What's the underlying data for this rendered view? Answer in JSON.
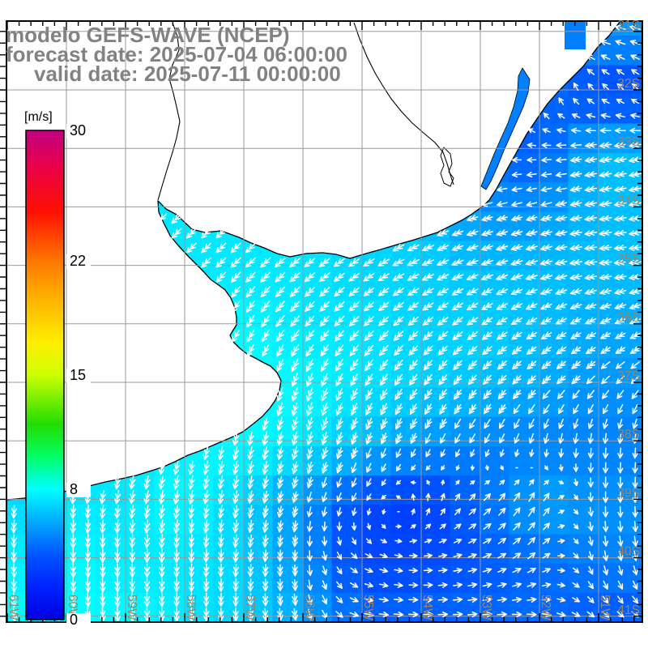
{
  "header": {
    "line1": "modelo GEFS-WAVE (NCEP)",
    "line2": "forecast date: 2025-07-04 06:00:00",
    "line3": "valid date: 2025-07-11 00:00:00",
    "text_color": "#828282"
  },
  "colorbar": {
    "unit_label": "[m/s]",
    "min": 0,
    "max": 30,
    "tick_labels": [
      "30",
      "22",
      "15",
      "8",
      "0"
    ],
    "tick_values": [
      30,
      22,
      15,
      8,
      0
    ],
    "stops": [
      [
        0,
        "#0000e0"
      ],
      [
        2,
        "#0022ff"
      ],
      [
        4,
        "#0055ff"
      ],
      [
        6,
        "#00aaff"
      ],
      [
        8,
        "#00ffff"
      ],
      [
        10,
        "#00ff66"
      ],
      [
        12,
        "#22dd00"
      ],
      [
        15,
        "#ccff00"
      ],
      [
        17,
        "#ffee00"
      ],
      [
        20,
        "#ffaa00"
      ],
      [
        22,
        "#ff7700"
      ],
      [
        25,
        "#ff1100"
      ],
      [
        28,
        "#e6004d"
      ],
      [
        30,
        "#c00080"
      ]
    ]
  },
  "axes": {
    "lat_labels": [
      "31S",
      "32S",
      "33S",
      "34S",
      "35S",
      "36S",
      "37S",
      "38S",
      "39S",
      "40S",
      "41S"
    ],
    "lon_labels": [
      "61W",
      "60W",
      "59W",
      "58W",
      "57W",
      "56W",
      "55W",
      "54W",
      "53W",
      "52W",
      "51W"
    ],
    "label_color": "#9c8468",
    "grid_color": "#999999"
  },
  "chart_data": {
    "type": "heatmap",
    "subtype": "wind_speed_and_direction_vector_field",
    "units": "m/s",
    "colorbar_range": [
      0,
      30
    ],
    "lat_degS": [
      31,
      32,
      33,
      34,
      35,
      36,
      37,
      38,
      39,
      40,
      41
    ],
    "lon_degW": [
      61,
      60,
      59,
      58,
      57,
      56,
      55,
      54,
      53,
      52,
      51
    ],
    "land_is_null": true,
    "speed_ms": [
      [
        null,
        null,
        null,
        null,
        null,
        null,
        null,
        null,
        null,
        null,
        5.5
      ],
      [
        null,
        null,
        null,
        null,
        null,
        null,
        null,
        null,
        null,
        4.5,
        3.5
      ],
      [
        null,
        null,
        null,
        null,
        null,
        null,
        null,
        null,
        null,
        4,
        6.5
      ],
      [
        null,
        null,
        null,
        null,
        null,
        null,
        null,
        null,
        5.5,
        5.5,
        6.5
      ],
      [
        null,
        null,
        null,
        null,
        7.5,
        7.5,
        7,
        7,
        6.5,
        6.5,
        6.5
      ],
      [
        null,
        null,
        null,
        null,
        8,
        7.5,
        7.5,
        7,
        7,
        6.5,
        6
      ],
      [
        null,
        null,
        null,
        null,
        null,
        8,
        7.5,
        7,
        6.5,
        6,
        5.5
      ],
      [
        null,
        null,
        null,
        null,
        8,
        7.5,
        6.5,
        5.5,
        5,
        5,
        5
      ],
      [
        7,
        7.5,
        7.5,
        8,
        7,
        5.5,
        3.5,
        3,
        4.5,
        6,
        5.5
      ],
      [
        7.5,
        8,
        7.5,
        7.5,
        7,
        5.5,
        3.5,
        3.5,
        4,
        4.5,
        5
      ],
      [
        8,
        8,
        8,
        7.5,
        7,
        6,
        4.5,
        4.5,
        4.5,
        4.5,
        4
      ]
    ],
    "dir_to_deg": [
      [
        null,
        null,
        null,
        null,
        null,
        null,
        null,
        null,
        null,
        null,
        285
      ],
      [
        null,
        null,
        null,
        null,
        null,
        null,
        null,
        null,
        null,
        355,
        315
      ],
      [
        null,
        null,
        null,
        null,
        null,
        null,
        null,
        null,
        null,
        270,
        260
      ],
      [
        null,
        null,
        null,
        null,
        null,
        null,
        null,
        null,
        255,
        255,
        260
      ],
      [
        null,
        null,
        null,
        null,
        225,
        230,
        235,
        245,
        250,
        255,
        265
      ],
      [
        null,
        null,
        null,
        null,
        210,
        220,
        225,
        230,
        235,
        240,
        245
      ],
      [
        null,
        null,
        null,
        null,
        null,
        200,
        210,
        215,
        220,
        225,
        225
      ],
      [
        null,
        null,
        null,
        null,
        190,
        195,
        200,
        205,
        210,
        195,
        185
      ],
      [
        185,
        185,
        190,
        190,
        190,
        195,
        210,
        0,
        45,
        30,
        180
      ],
      [
        180,
        180,
        180,
        182,
        185,
        180,
        120,
        90,
        70,
        50,
        170
      ],
      [
        175,
        175,
        178,
        180,
        180,
        170,
        100,
        90,
        85,
        95,
        130
      ]
    ]
  }
}
